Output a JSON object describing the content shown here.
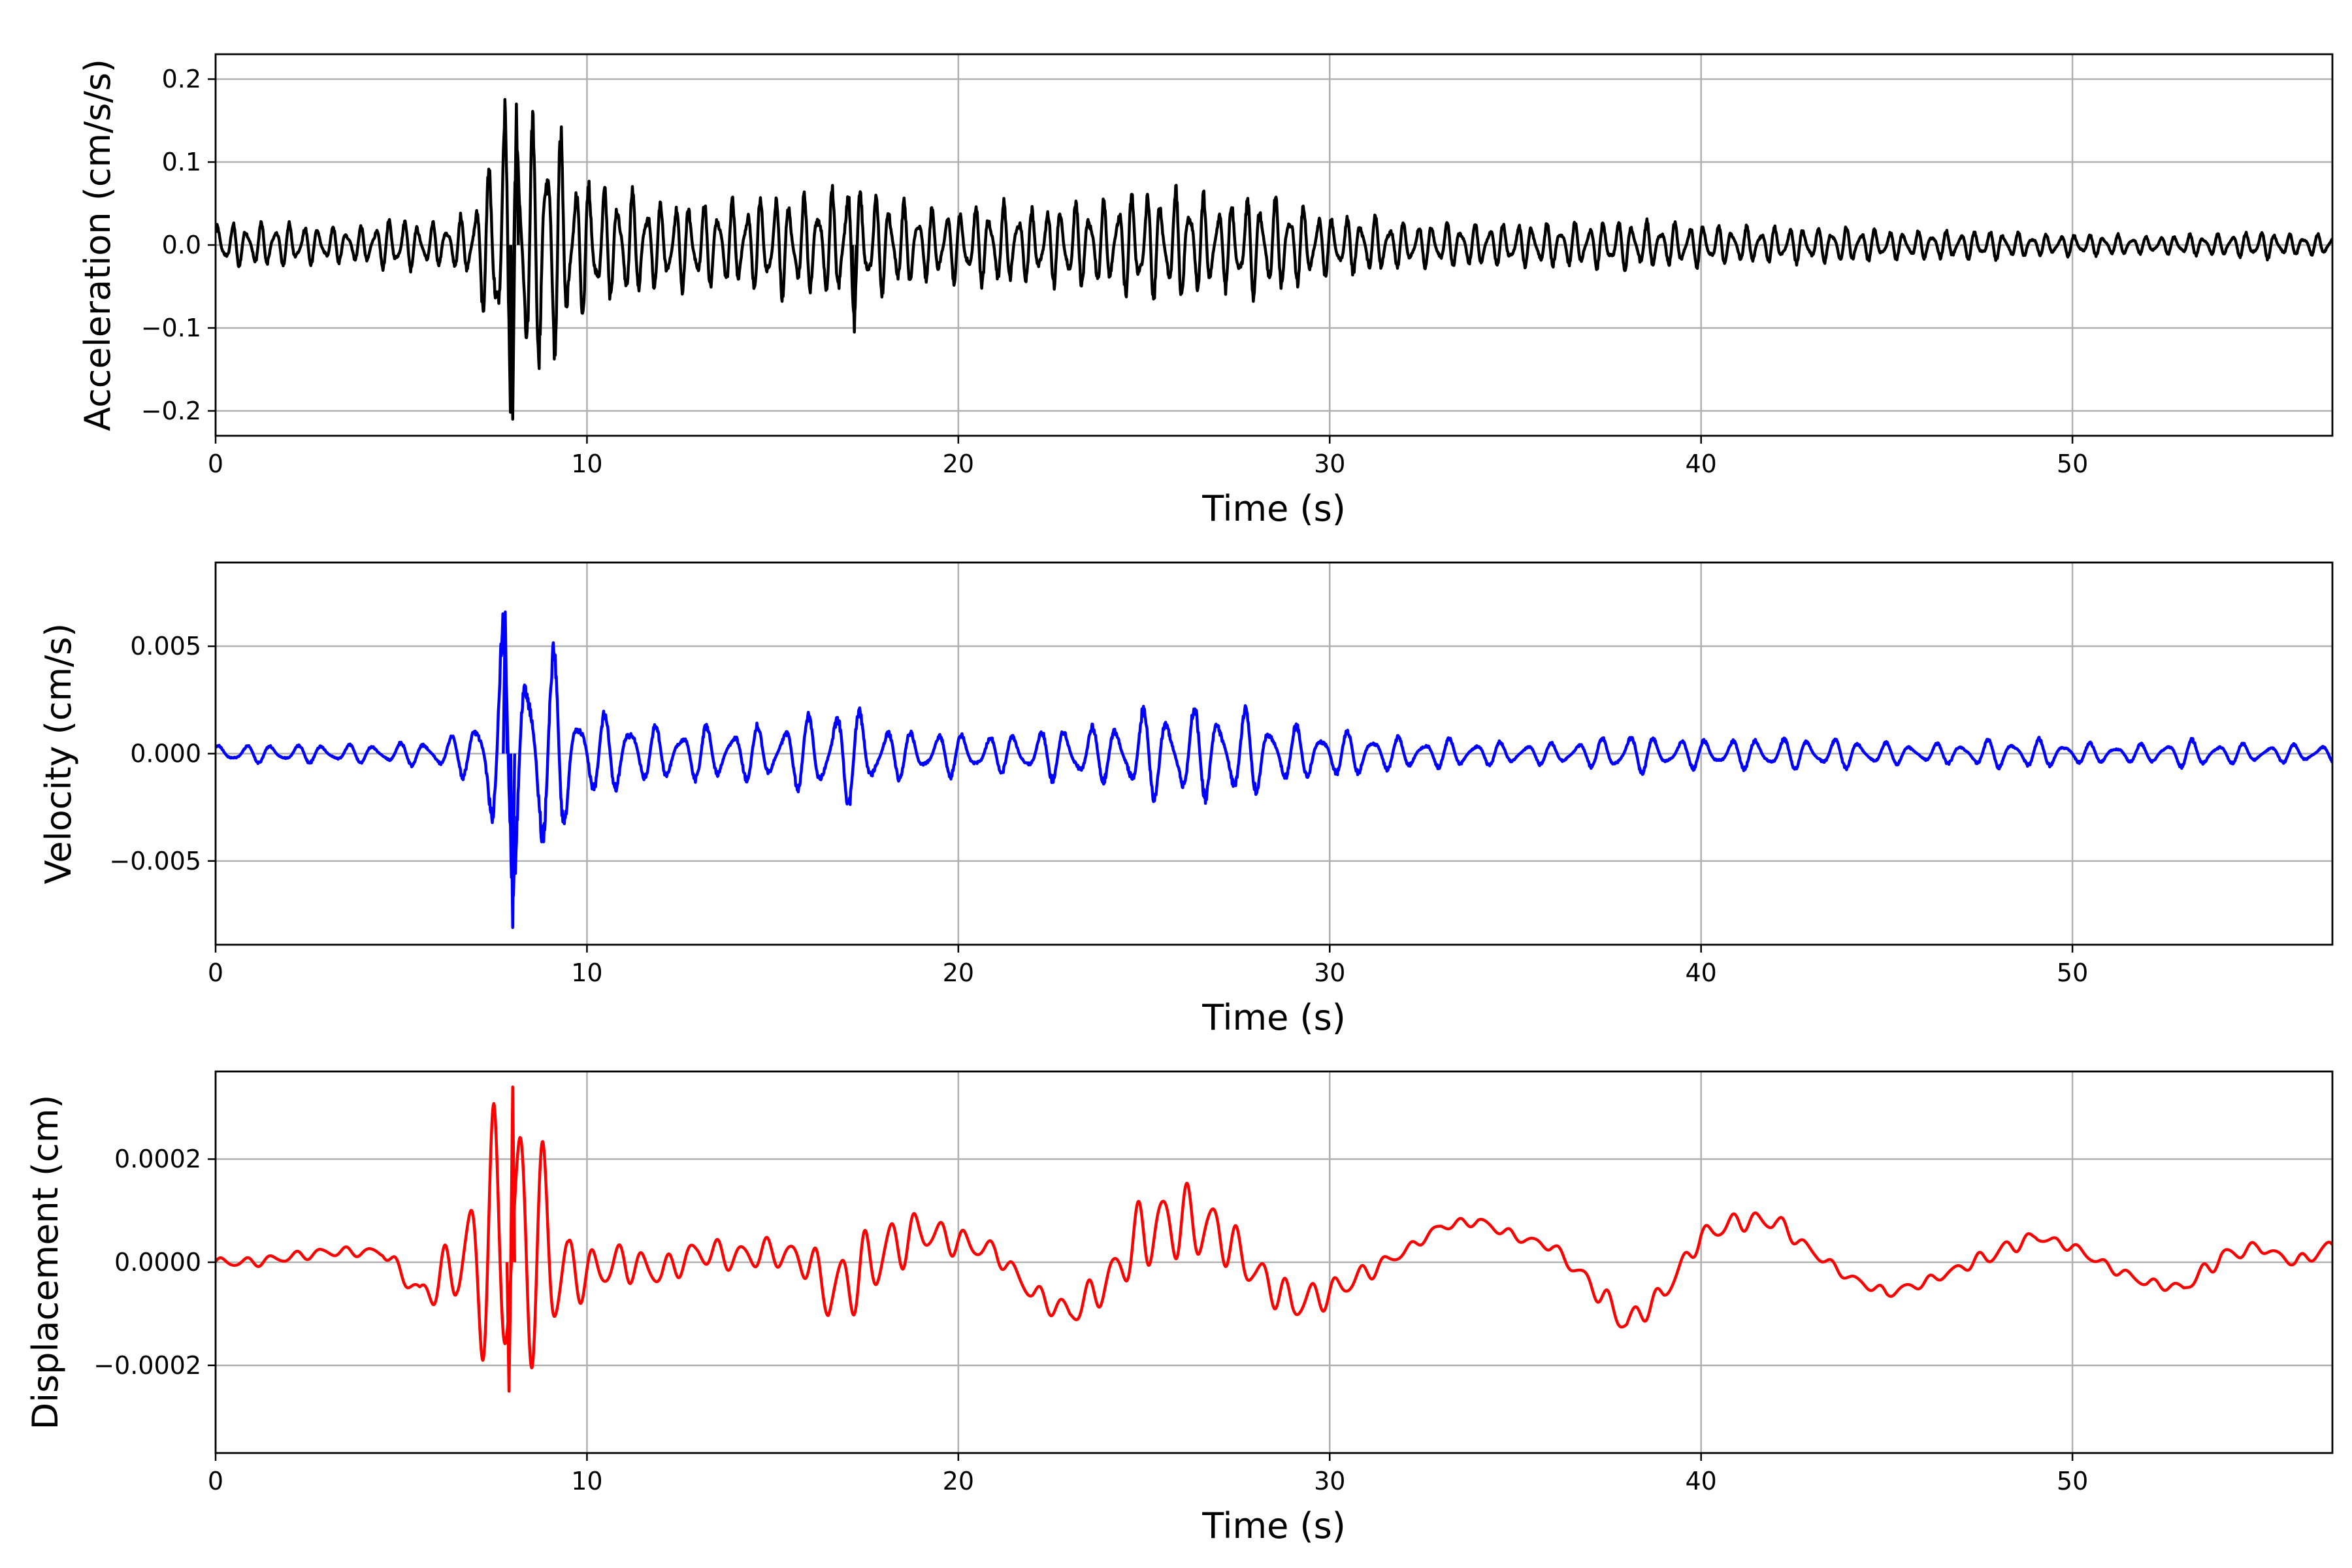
{
  "chart_data": [
    {
      "type": "line",
      "ylabel": "Acceleration (cm/s/s)",
      "xlabel": "Time (s)",
      "xlim": [
        0,
        57
      ],
      "ylim": [
        -0.23,
        0.23
      ],
      "xticks": [
        0,
        10,
        20,
        30,
        40,
        50
      ],
      "yticks": [
        -0.2,
        -0.1,
        0.0,
        0.1,
        0.2
      ],
      "ytick_labels": [
        "−0.2",
        "−0.1",
        "0.0",
        "0.1",
        "0.2"
      ],
      "grid": true,
      "color": "#000000",
      "x": [
        0,
        1,
        2,
        3,
        4,
        5,
        5.5,
        6,
        6.5,
        7,
        7.5,
        7.7,
        8,
        8.2,
        8.5,
        8.8,
        9,
        9.3,
        9.6,
        10,
        10.5,
        11,
        11.5,
        12,
        13,
        14,
        15,
        16,
        16.5,
        17,
        17.2,
        17.5,
        18,
        19,
        20,
        21,
        22,
        23,
        24,
        24.5,
        25,
        25.5,
        26,
        27,
        28,
        29,
        30,
        31,
        32,
        33,
        34,
        35,
        36,
        37,
        38,
        39,
        40,
        41,
        42,
        43,
        44,
        45,
        46,
        47,
        48,
        49,
        50,
        51,
        52,
        53,
        54,
        55,
        56,
        57
      ],
      "envelope": [
        0.03,
        0.03,
        0.03,
        0.025,
        0.025,
        0.04,
        0.03,
        0.03,
        0.035,
        0.06,
        0.14,
        0.2,
        0.21,
        0.18,
        0.17,
        0.19,
        0.17,
        0.16,
        0.1,
        0.1,
        0.08,
        0.08,
        0.07,
        0.06,
        0.06,
        0.06,
        0.07,
        0.07,
        0.07,
        0.1,
        0.1,
        0.07,
        0.07,
        0.05,
        0.05,
        0.06,
        0.05,
        0.06,
        0.06,
        0.07,
        0.08,
        0.07,
        0.08,
        0.06,
        0.07,
        0.06,
        0.04,
        0.04,
        0.03,
        0.03,
        0.03,
        0.03,
        0.03,
        0.03,
        0.035,
        0.03,
        0.03,
        0.025,
        0.025,
        0.025,
        0.025,
        0.02,
        0.02,
        0.02,
        0.02,
        0.015,
        0.015,
        0.015,
        0.012,
        0.015,
        0.015,
        0.02,
        0.015,
        0.015
      ],
      "peaks": [
        {
          "x": 8.0,
          "y": -0.21
        },
        {
          "x": 8.1,
          "y": 0.17
        },
        {
          "x": 17.2,
          "y": -0.105
        }
      ]
    },
    {
      "type": "line",
      "ylabel": "Velocity (cm/s)",
      "xlabel": "Time (s)",
      "xlim": [
        0,
        57
      ],
      "ylim": [
        -0.0089,
        0.0089
      ],
      "xticks": [
        0,
        10,
        20,
        30,
        40,
        50
      ],
      "yticks": [
        -0.005,
        0.0,
        0.005
      ],
      "ytick_labels": [
        "−0.005",
        "0.000",
        "0.005"
      ],
      "grid": true,
      "color": "#0000ff",
      "x": [
        0,
        2,
        4,
        5,
        6,
        6.5,
        7,
        7.5,
        7.7,
        8,
        8.3,
        8.6,
        9,
        9.3,
        9.6,
        10,
        10.5,
        11,
        11.5,
        12,
        14,
        15,
        16,
        17,
        17.5,
        18,
        19,
        20,
        21,
        22,
        23,
        24,
        25,
        26,
        27,
        28,
        29,
        30,
        31,
        32,
        33,
        34,
        35,
        36,
        37,
        38,
        39,
        40,
        41,
        42,
        43,
        44,
        45,
        46,
        47,
        48,
        49,
        50,
        51,
        52,
        53,
        54,
        55,
        56,
        57
      ],
      "envelope": [
        0.0005,
        0.0005,
        0.0005,
        0.0006,
        0.0008,
        0.001,
        0.002,
        0.005,
        0.0065,
        0.0078,
        0.0065,
        0.006,
        0.0055,
        0.005,
        0.003,
        0.0025,
        0.002,
        0.0025,
        0.0015,
        0.0015,
        0.0015,
        0.0015,
        0.0022,
        0.0028,
        0.0024,
        0.0015,
        0.0012,
        0.0012,
        0.001,
        0.0012,
        0.0016,
        0.0015,
        0.0025,
        0.0025,
        0.0025,
        0.0022,
        0.0015,
        0.0013,
        0.0012,
        0.0008,
        0.0008,
        0.0007,
        0.0006,
        0.0006,
        0.0007,
        0.0012,
        0.0008,
        0.0008,
        0.0008,
        0.0009,
        0.0008,
        0.0008,
        0.0006,
        0.0005,
        0.0006,
        0.0008,
        0.0008,
        0.0006,
        0.0005,
        0.0005,
        0.0008,
        0.0006,
        0.0005,
        0.0005,
        0.0005
      ],
      "peaks": [
        {
          "x": 8.0,
          "y": -0.0081
        },
        {
          "x": 7.8,
          "y": 0.0066
        }
      ]
    },
    {
      "type": "line",
      "ylabel": "Displacement (cm)",
      "xlabel": "Time (s)",
      "xlim": [
        0,
        57
      ],
      "ylim": [
        -0.00037,
        0.00037
      ],
      "xticks": [
        0,
        10,
        20,
        30,
        40,
        50
      ],
      "yticks": [
        -0.0002,
        0.0,
        0.0002
      ],
      "ytick_labels": [
        "−0.0002",
        "0.0000",
        "0.0002"
      ],
      "grid": true,
      "color": "#ff0000",
      "x": [
        0,
        1,
        2,
        3,
        4,
        4.5,
        5,
        5.5,
        6,
        6.5,
        7,
        7.5,
        8,
        8.5,
        9,
        9.5,
        10,
        11,
        12,
        13,
        14,
        15,
        16,
        16.5,
        17,
        18,
        19,
        20,
        21,
        22,
        23,
        24,
        25,
        26,
        27,
        28,
        29,
        30,
        31,
        32,
        33,
        34,
        35,
        36,
        37,
        38,
        39,
        40,
        41,
        42,
        43,
        44,
        45,
        46,
        47,
        48,
        49,
        50,
        51,
        52,
        53,
        54,
        55,
        56,
        57
      ],
      "trend": [
        0,
        0,
        1e-05,
        2e-05,
        2e-05,
        2e-05,
        -2e-05,
        -6e-05,
        -4e-05,
        0,
        0,
        4e-05,
        5e-05,
        3e-05,
        2e-05,
        -2e-05,
        -2e-05,
        0,
        -2e-05,
        2e-05,
        1e-05,
        2e-05,
        0,
        -6e-05,
        -4e-05,
        2e-05,
        6e-05,
        4e-05,
        2e-05,
        -6e-05,
        -0.0001,
        -4e-05,
        6e-05,
        8e-05,
        6e-05,
        -2e-05,
        -8e-05,
        -6e-05,
        -2e-05,
        2e-05,
        7e-05,
        8e-05,
        5e-05,
        3e-05,
        -4e-05,
        -0.00012,
        -6e-05,
        5e-05,
        8e-05,
        8e-05,
        2e-05,
        -3e-05,
        -6e-05,
        -4e-05,
        -1e-05,
        2e-05,
        5e-05,
        3e-05,
        -1e-05,
        -4e-05,
        -5e-05,
        1e-05,
        3e-05,
        0,
        3e-05
      ],
      "osc": [
        1e-05,
        1e-05,
        1e-05,
        1e-05,
        1e-05,
        1e-05,
        2e-05,
        2e-05,
        5e-05,
        8e-05,
        0.00018,
        0.00028,
        0.0003,
        0.00024,
        0.00022,
        8e-05,
        5e-05,
        4e-05,
        3e-05,
        3e-05,
        3e-05,
        3e-05,
        4e-05,
        6e-05,
        8e-05,
        7e-05,
        4e-05,
        3e-05,
        2e-05,
        2e-05,
        3e-05,
        4e-05,
        8e-05,
        8e-05,
        6e-05,
        4e-05,
        4e-05,
        3e-05,
        2e-05,
        1e-05,
        1e-05,
        1e-05,
        1e-05,
        1e-05,
        2e-05,
        3e-05,
        2e-05,
        2e-05,
        2e-05,
        2e-05,
        1e-05,
        1e-05,
        1e-05,
        1e-05,
        1e-05,
        2e-05,
        1e-05,
        1e-05,
        1e-05,
        1e-05,
        1e-05,
        2e-05,
        1e-05,
        1e-05,
        2e-05
      ],
      "peaks": [
        {
          "x": 8.0,
          "y": 0.00034
        },
        {
          "x": 7.9,
          "y": -0.00025
        }
      ]
    }
  ]
}
